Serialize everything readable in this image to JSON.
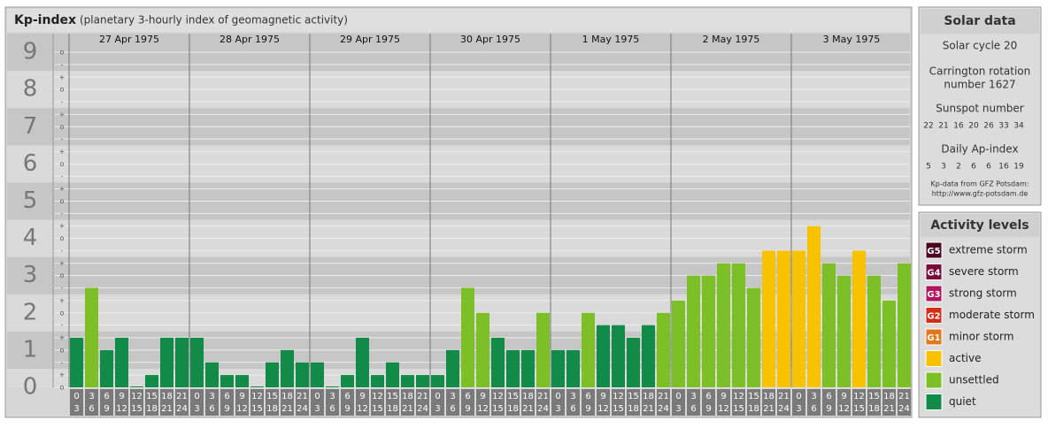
{
  "chart_data": {
    "type": "bar",
    "title": "Kp-index",
    "subtitle": "(planetary 3-hourly index of geomagnetic activity)",
    "ylim": [
      0,
      9.5
    ],
    "yticks": [
      0,
      1,
      2,
      3,
      4,
      5,
      6,
      7,
      8,
      9
    ],
    "minor_ticks": [
      {
        "value": 0,
        "label": "o"
      },
      {
        "value": 0.33,
        "label": "+"
      },
      {
        "value": 0.67,
        "label": "-"
      },
      {
        "value": 1,
        "label": "o"
      },
      {
        "value": 1.33,
        "label": "+"
      },
      {
        "value": 1.67,
        "label": "-"
      },
      {
        "value": 2,
        "label": "o"
      },
      {
        "value": 2.33,
        "label": "+"
      },
      {
        "value": 2.67,
        "label": "-"
      },
      {
        "value": 3,
        "label": "o"
      },
      {
        "value": 3.33,
        "label": "+"
      },
      {
        "value": 3.67,
        "label": "-"
      },
      {
        "value": 4,
        "label": "o"
      },
      {
        "value": 4.33,
        "label": "+"
      },
      {
        "value": 4.67,
        "label": "-"
      },
      {
        "value": 5,
        "label": "o"
      },
      {
        "value": 5.33,
        "label": "+"
      },
      {
        "value": 5.67,
        "label": "-"
      },
      {
        "value": 6,
        "label": "o"
      },
      {
        "value": 6.33,
        "label": "+"
      },
      {
        "value": 6.67,
        "label": "-"
      },
      {
        "value": 7,
        "label": "o"
      },
      {
        "value": 7.33,
        "label": "+"
      },
      {
        "value": 7.67,
        "label": "-"
      },
      {
        "value": 8,
        "label": "o"
      },
      {
        "value": 8.33,
        "label": "+"
      },
      {
        "value": 8.67,
        "label": "-"
      },
      {
        "value": 9,
        "label": "o"
      }
    ],
    "hour_labels": [
      [
        "0",
        "3"
      ],
      [
        "3",
        "6"
      ],
      [
        "6",
        "9"
      ],
      [
        "9",
        "12"
      ],
      [
        "12",
        "15"
      ],
      [
        "15",
        "18"
      ],
      [
        "18",
        "21"
      ],
      [
        "21",
        "24"
      ]
    ],
    "days": [
      {
        "date": "27 Apr 1975",
        "values": [
          1.33,
          2.67,
          1,
          1.33,
          0,
          0.33,
          1.33,
          1.33
        ]
      },
      {
        "date": "28 Apr 1975",
        "values": [
          1.33,
          0.67,
          0.33,
          0.33,
          0,
          0.67,
          1,
          0.67
        ]
      },
      {
        "date": "29 Apr 1975",
        "values": [
          0.67,
          0,
          0.33,
          1.33,
          0.33,
          0.67,
          0.33,
          0.33
        ]
      },
      {
        "date": "30 Apr 1975",
        "values": [
          0.33,
          1,
          2.67,
          2,
          1.33,
          1,
          1,
          2
        ]
      },
      {
        "date": "1 May 1975",
        "values": [
          1,
          1,
          2,
          1.67,
          1.67,
          1.33,
          1.67,
          2
        ]
      },
      {
        "date": "2 May 1975",
        "values": [
          2.33,
          3,
          3,
          3.33,
          3.33,
          2.67,
          3.67,
          3.67
        ]
      },
      {
        "date": "3 May 1975",
        "values": [
          3.67,
          4.33,
          3.33,
          3,
          3.67,
          3,
          2.33,
          3.33
        ]
      }
    ],
    "levels": [
      {
        "badge": "G5",
        "label": "extreme storm",
        "color": "#4a0522",
        "min": 9
      },
      {
        "badge": "G4",
        "label": "severe storm",
        "color": "#7a0b3a",
        "min": 8
      },
      {
        "badge": "G3",
        "label": "strong storm",
        "color": "#b0145e",
        "min": 7
      },
      {
        "badge": "G2",
        "label": "moderate storm",
        "color": "#d42b1a",
        "min": 6
      },
      {
        "badge": "G1",
        "label": "minor storm",
        "color": "#e2781a",
        "min": 5
      },
      {
        "label": "active",
        "color": "#f7c200",
        "min": 3.67
      },
      {
        "label": "unsettled",
        "color": "#7cbf26",
        "min": 2
      },
      {
        "label": "quiet",
        "color": "#128a48",
        "min": 0
      }
    ]
  },
  "solar": {
    "title": "Solar data",
    "cycle": "Solar cycle 20",
    "carrington": [
      "Carrington rotation",
      "number 1627"
    ],
    "sunspot_title": "Sunspot number",
    "sunspot": [
      "22",
      "21",
      "16",
      "20",
      "26",
      "33",
      "34"
    ],
    "ap_title": "Daily Ap-index",
    "ap": [
      "5",
      "3",
      "2",
      "6",
      "6",
      "16",
      "19"
    ],
    "source": [
      "Kp-data from GFZ Potsdam:",
      "http://www.gfz-potsdam.de"
    ]
  },
  "legend_title": "Activity levels"
}
